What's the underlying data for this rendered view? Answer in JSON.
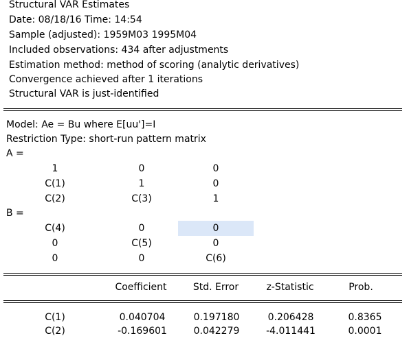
{
  "header": {
    "lines": [
      "Structural VAR Estimates",
      "Date: 08/18/16   Time: 14:54",
      "Sample (adjusted): 1959M03 1995M04",
      "Included observations: 434 after adjustments",
      "Estimation method: method of scoring (analytic derivatives)",
      "Convergence achieved after 1 iterations",
      "Structural VAR is just-identified"
    ]
  },
  "model": {
    "model_line": "Model: Ae = Bu where E[uu']=I",
    "restriction_line": "Restriction Type: short-run pattern matrix",
    "a_label": "A =",
    "a_matrix": [
      [
        "1",
        "0",
        "0"
      ],
      [
        "C(1)",
        "1",
        "0"
      ],
      [
        "C(2)",
        "C(3)",
        "1"
      ]
    ],
    "b_label": "B =",
    "b_matrix": [
      [
        "C(4)",
        "0",
        "0"
      ],
      [
        "0",
        "C(5)",
        "0"
      ],
      [
        "0",
        "0",
        "C(6)"
      ]
    ]
  },
  "table": {
    "headers": [
      "",
      "Coefficient",
      "Std. Error",
      "z-Statistic",
      "Prob."
    ],
    "rows": [
      [
        "C(1)",
        "0.040704",
        "0.197180",
        "0.206428",
        "0.8365"
      ],
      [
        "C(2)",
        "-0.169601",
        "0.042279",
        "-4.011441",
        "0.0001"
      ]
    ]
  }
}
